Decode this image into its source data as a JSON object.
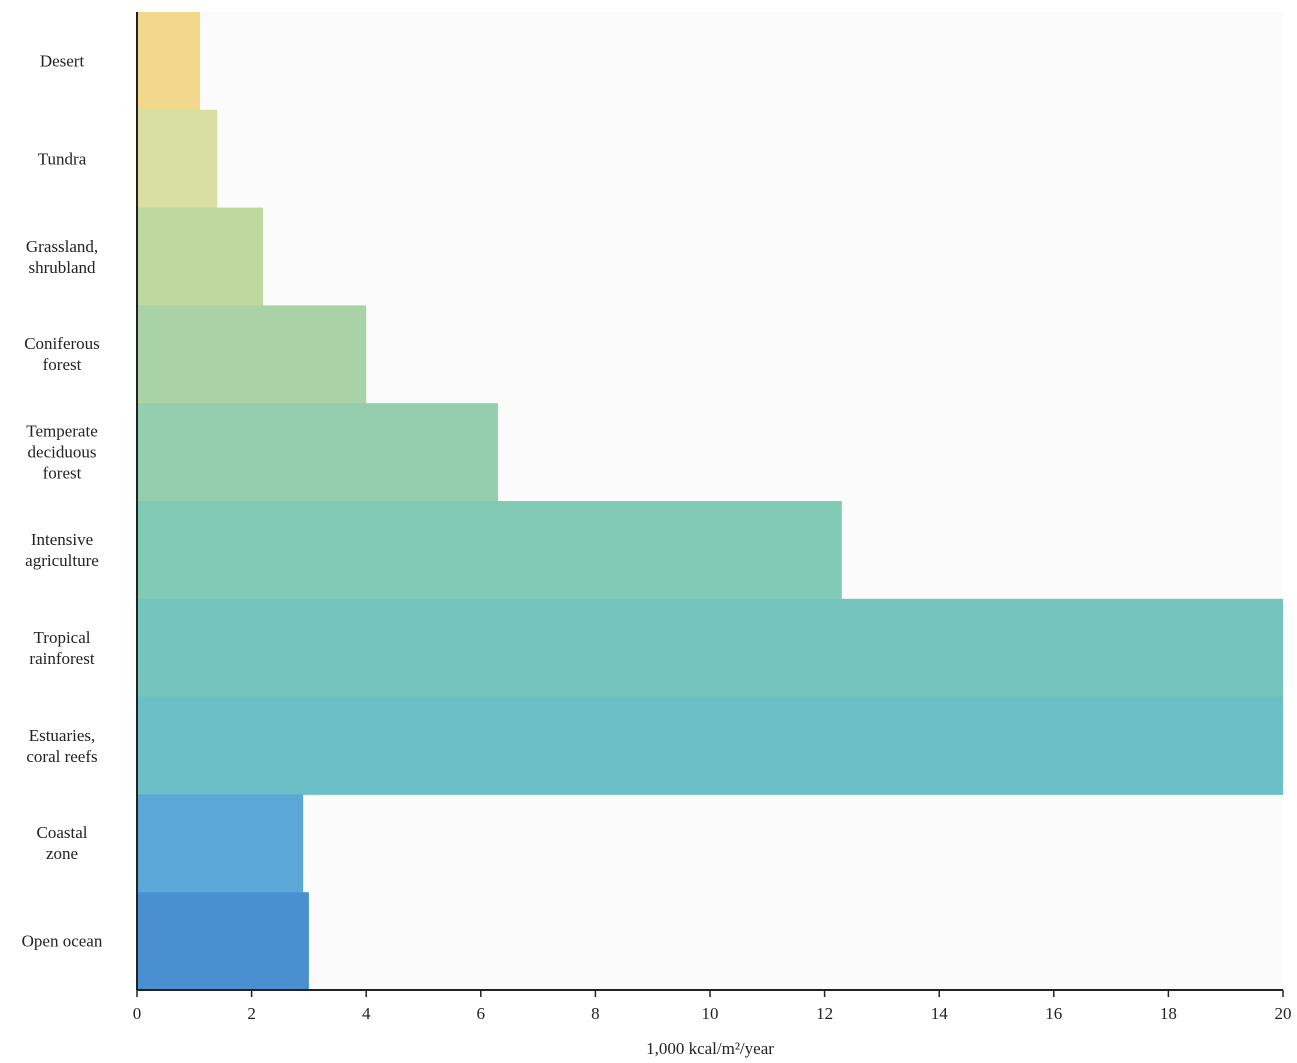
{
  "chart_data": {
    "type": "barh",
    "categories": [
      "Desert",
      "Tundra",
      "Grassland,\nshrubland",
      "Coniferous\nforest",
      "Temperate\ndeciduous\nforest",
      "Intensive\nagriculture",
      "Tropical\nrainforest",
      "Estuaries,\ncoral reefs",
      "Coastal\nzone",
      "Open ocean"
    ],
    "series": [
      {
        "colors": [
          "#f1d88c",
          "#d9dfa0",
          "#bfd8a0",
          "#a9d3a7",
          "#94ceae",
          "#83cab4",
          "#76c5bc",
          "#6bbfc6",
          "#5aa7d8",
          "#4a8fd0"
        ],
        "values": [
          1.1,
          1.4,
          2.2,
          4.0,
          6.3,
          12.3,
          20,
          20,
          2.9,
          3.0
        ]
      }
    ],
    "xlim": [
      0,
      20
    ],
    "xticks": [
      0,
      2,
      4,
      6,
      8,
      10,
      12,
      14,
      16,
      18,
      20
    ],
    "xlabel": "1,000 kcal/m²/year"
  }
}
